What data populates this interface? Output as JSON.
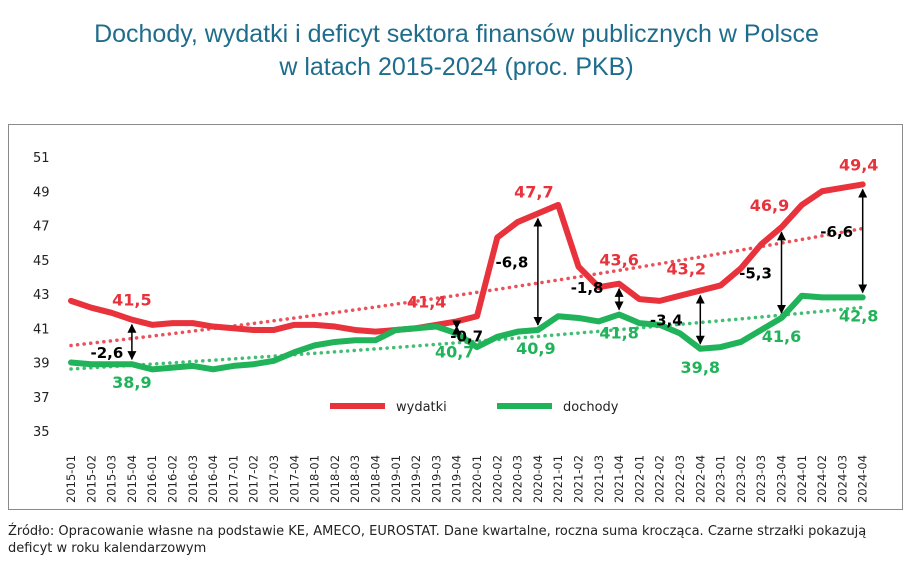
{
  "title_line1": "Dochody, wydatki i deficyt sektora finansów publicznych w Polsce",
  "title_line2": "w latach 2015-2024 (proc. PKB)",
  "source": "Źródło: Opracowanie własne na podstawie KE, AMECO, EUROSTAT. Dane kwartalne, roczna suma krocząca. Czarne strzałki pokazują deficyt w roku kalendarzowym",
  "colors": {
    "wydatki": "#e8323c",
    "dochody": "#20b35a",
    "arrow": "#000000",
    "grid": "#d9d9d9"
  },
  "chart_data": {
    "type": "line",
    "title": "Dochody, wydatki i deficyt sektora finansów publicznych w Polsce w latach 2015-2024 (proc. PKB)",
    "ylim": [
      35,
      51
    ],
    "yticks": [
      35,
      37,
      39,
      41,
      43,
      45,
      47,
      49,
      51
    ],
    "grid": false,
    "legend_placement": "bottom-center",
    "categories": [
      "2015-01",
      "2015-02",
      "2015-03",
      "2015-04",
      "2016-01",
      "2016-02",
      "2016-03",
      "2016-04",
      "2017-01",
      "2017-02",
      "2017-03",
      "2017-04",
      "2018-01",
      "2018-02",
      "2018-03",
      "2018-04",
      "2019-01",
      "2019-02",
      "2019-03",
      "2019-04",
      "2020-01",
      "2020-02",
      "2020-03",
      "2020-04",
      "2021-01",
      "2021-02",
      "2021-03",
      "2021-04",
      "2022-01",
      "2022-02",
      "2022-03",
      "2022-04",
      "2023-01",
      "2023-02",
      "2023-03",
      "2023-04",
      "2024-01",
      "2024-02",
      "2024-03",
      "2024-04"
    ],
    "series": [
      {
        "name": "wydatki",
        "color": "#e8323c",
        "trendline": true,
        "values": [
          42.6,
          42.2,
          41.9,
          41.5,
          41.2,
          41.3,
          41.3,
          41.1,
          41.0,
          40.9,
          40.9,
          41.2,
          41.2,
          41.1,
          40.9,
          40.8,
          40.9,
          41.0,
          41.2,
          41.4,
          41.7,
          46.3,
          47.2,
          47.7,
          48.2,
          44.6,
          43.4,
          43.6,
          42.7,
          42.6,
          42.9,
          43.2,
          43.5,
          44.5,
          45.9,
          46.9,
          48.2,
          49.0,
          49.2,
          49.4
        ]
      },
      {
        "name": "dochody",
        "color": "#20b35a",
        "trendline": true,
        "values": [
          39.0,
          38.9,
          38.9,
          38.9,
          38.6,
          38.7,
          38.8,
          38.6,
          38.8,
          38.9,
          39.1,
          39.6,
          40.0,
          40.2,
          40.3,
          40.3,
          40.9,
          41.0,
          41.1,
          40.7,
          39.9,
          40.5,
          40.8,
          40.9,
          41.7,
          41.6,
          41.4,
          41.8,
          41.3,
          41.2,
          40.7,
          39.8,
          39.9,
          40.2,
          40.9,
          41.6,
          42.9,
          42.8,
          42.8,
          42.8
        ]
      }
    ],
    "point_labels": [
      {
        "series": "wydatki",
        "index": 3,
        "text": "41,5"
      },
      {
        "series": "wydatki",
        "index": 19,
        "text": "41,4"
      },
      {
        "series": "wydatki",
        "index": 23,
        "text": "47,7"
      },
      {
        "series": "wydatki",
        "index": 27,
        "text": "43,6"
      },
      {
        "series": "wydatki",
        "index": 31,
        "text": "43,2"
      },
      {
        "series": "wydatki",
        "index": 35,
        "text": "46,9"
      },
      {
        "series": "wydatki",
        "index": 39,
        "text": "49,4"
      },
      {
        "series": "dochody",
        "index": 3,
        "text": "38,9"
      },
      {
        "series": "dochody",
        "index": 19,
        "text": "40,7"
      },
      {
        "series": "dochody",
        "index": 23,
        "text": "40,9"
      },
      {
        "series": "dochody",
        "index": 27,
        "text": "41,8"
      },
      {
        "series": "dochody",
        "index": 31,
        "text": "39,8"
      },
      {
        "series": "dochody",
        "index": 35,
        "text": "41,6"
      },
      {
        "series": "dochody",
        "index": 39,
        "text": "42,8"
      }
    ],
    "deficit_arrows": [
      {
        "index": 3,
        "label": "-2,6"
      },
      {
        "index": 19,
        "label": "-0,7"
      },
      {
        "index": 23,
        "label": "-6,8"
      },
      {
        "index": 27,
        "label": "-1,8"
      },
      {
        "index": 31,
        "label": "-3,4"
      },
      {
        "index": 35,
        "label": "-5,3"
      },
      {
        "index": 39,
        "label": "-6,6"
      }
    ]
  }
}
